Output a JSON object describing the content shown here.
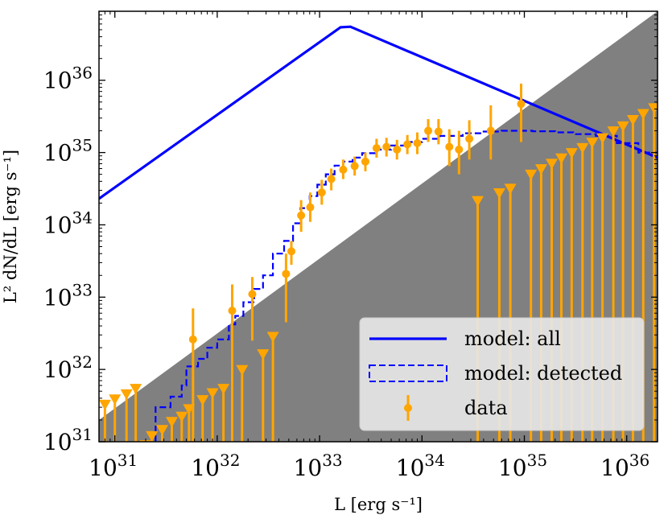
{
  "chart_data": {
    "type": "line",
    "title": "",
    "xlabel": "L [erg s⁻¹]",
    "ylabel": "L² dN/dL [erg s⁻¹]",
    "xscale": "log",
    "yscale": "log",
    "xlim": [
      7e+30,
      2e+36
    ],
    "ylim": [
      1e+31,
      9e+36
    ],
    "x_ticks": [
      {
        "value": 1e+31,
        "base": "10",
        "exp": "31"
      },
      {
        "value": 1e+32,
        "base": "10",
        "exp": "32"
      },
      {
        "value": 1e+33,
        "base": "10",
        "exp": "33"
      },
      {
        "value": 1e+34,
        "base": "10",
        "exp": "34"
      },
      {
        "value": 1e+35,
        "base": "10",
        "exp": "35"
      },
      {
        "value": 1e+36,
        "base": "10",
        "exp": "36"
      }
    ],
    "y_ticks": [
      {
        "value": 1e+31,
        "base": "10",
        "exp": "31"
      },
      {
        "value": 1e+32,
        "base": "10",
        "exp": "32"
      },
      {
        "value": 1e+33,
        "base": "10",
        "exp": "33"
      },
      {
        "value": 1e+34,
        "base": "10",
        "exp": "34"
      },
      {
        "value": 1e+35,
        "base": "10",
        "exp": "35"
      },
      {
        "value": 1e+36,
        "base": "10",
        "exp": "36"
      }
    ],
    "grid": false,
    "legend_position": "lower-right",
    "shaded_region": {
      "description": "sensitivity limit",
      "line": [
        [
          7e+30,
          2e+31
        ],
        [
          2e+36,
          9e+36
        ]
      ],
      "color": "#808080"
    },
    "series": [
      {
        "name": "model: all",
        "style": "solid",
        "color": "#0000ff",
        "points": [
          [
            7e+30,
            2.3e+34
          ],
          [
            1.6e+33,
            5.4e+36
          ],
          [
            2e+33,
            5.5e+36
          ],
          [
            2e+36,
            8.5e+34
          ]
        ]
      },
      {
        "name": "model: detected",
        "style": "dashed-step",
        "color": "#0000ff",
        "points": [
          [
            2.5e+31,
            1e+31
          ],
          [
            2.5e+31,
            3e+31
          ],
          [
            3.5e+31,
            3e+31
          ],
          [
            3.5e+31,
            4.2e+31
          ],
          [
            4.5e+31,
            4.2e+31
          ],
          [
            4.5e+31,
            6e+31
          ],
          [
            5e+31,
            6e+31
          ],
          [
            5e+31,
            1.1e+32
          ],
          [
            6.5e+31,
            1.1e+32
          ],
          [
            6.5e+31,
            1.4e+32
          ],
          [
            8e+31,
            1.4e+32
          ],
          [
            8e+31,
            2e+32
          ],
          [
            1e+32,
            2e+32
          ],
          [
            1e+32,
            2.6e+32
          ],
          [
            1.3e+32,
            2.6e+32
          ],
          [
            1.3e+32,
            4.2e+32
          ],
          [
            1.5e+32,
            4.2e+32
          ],
          [
            1.5e+32,
            5.5e+32
          ],
          [
            1.8e+32,
            5.5e+32
          ],
          [
            1.8e+32,
            8.5e+32
          ],
          [
            2.3e+32,
            8.5e+32
          ],
          [
            2.3e+32,
            1.3e+33
          ],
          [
            2.8e+32,
            1.3e+33
          ],
          [
            2.8e+32,
            2e+33
          ],
          [
            3.5e+32,
            2e+33
          ],
          [
            3.5e+32,
            4e+33
          ],
          [
            4.5e+32,
            4e+33
          ],
          [
            4.5e+32,
            6e+33
          ],
          [
            5.5e+32,
            6e+33
          ],
          [
            5.5e+32,
            1.05e+34
          ],
          [
            6.5e+32,
            1.05e+34
          ],
          [
            6.5e+32,
            1.7e+34
          ],
          [
            8e+32,
            1.7e+34
          ],
          [
            8e+32,
            2.5e+34
          ],
          [
            9.5e+32,
            2.5e+34
          ],
          [
            9.5e+32,
            3.6e+34
          ],
          [
            1.15e+33,
            3.6e+34
          ],
          [
            1.15e+33,
            5e+34
          ],
          [
            1.4e+33,
            5e+34
          ],
          [
            1.4e+33,
            6.6e+34
          ],
          [
            1.7e+33,
            6.6e+34
          ],
          [
            1.7e+33,
            7.5e+34
          ],
          [
            2.1e+33,
            7.5e+34
          ],
          [
            2.1e+33,
            8.5e+34
          ],
          [
            2.6e+33,
            8.5e+34
          ],
          [
            2.6e+33,
            9.8e+34
          ],
          [
            3.5e+33,
            9.8e+34
          ],
          [
            3.5e+33,
            1.1e+35
          ],
          [
            5e+33,
            1.1e+35
          ],
          [
            5e+33,
            1.25e+35
          ],
          [
            7e+33,
            1.25e+35
          ],
          [
            7e+33,
            1.4e+35
          ],
          [
            1e+34,
            1.4e+35
          ],
          [
            1e+34,
            1.55e+35
          ],
          [
            1.5e+34,
            1.55e+35
          ],
          [
            1.5e+34,
            1.7e+35
          ],
          [
            2.5e+34,
            1.7e+35
          ],
          [
            2.5e+34,
            1.85e+35
          ],
          [
            4e+34,
            1.85e+35
          ],
          [
            4e+34,
            1.95e+35
          ],
          [
            6e+34,
            1.95e+35
          ],
          [
            6e+34,
            2e+35
          ],
          [
            1.2e+35,
            2e+35
          ],
          [
            1.2e+35,
            1.97e+35
          ],
          [
            2e+35,
            1.97e+35
          ],
          [
            2e+35,
            1.9e+35
          ],
          [
            3e+35,
            1.9e+35
          ],
          [
            3e+35,
            1.8e+35
          ],
          [
            5e+35,
            1.8e+35
          ],
          [
            5e+35,
            1.7e+35
          ],
          [
            8e+35,
            1.7e+35
          ],
          [
            8e+35,
            1.35e+35
          ],
          [
            1.3e+36,
            1.35e+35
          ],
          [
            1.3e+36,
            1e+35
          ],
          [
            2e+36,
            1e+35
          ]
        ]
      }
    ],
    "data_points": {
      "name": "data",
      "color": "#ffa500",
      "detections": [
        {
          "x": 5.8e+31,
          "y": 2.6e+32,
          "lo": 7e+30,
          "hi": 7e+32
        },
        {
          "x": 1.4e+32,
          "y": 6.5e+32,
          "lo": 7e+30,
          "hi": 1.5e+33
        },
        {
          "x": 2.2e+32,
          "y": 1.1e+33,
          "lo": 2.5e+32,
          "hi": 1.9e+33
        },
        {
          "x": 4.7e+32,
          "y": 2.1e+33,
          "lo": 4.5e+32,
          "hi": 4e+33
        },
        {
          "x": 5.3e+32,
          "y": 4.3e+33,
          "lo": 2.8e+33,
          "hi": 6e+33
        },
        {
          "x": 6.6e+32,
          "y": 1.35e+34,
          "lo": 8e+33,
          "hi": 2.2e+34
        },
        {
          "x": 8.1e+32,
          "y": 1.75e+34,
          "lo": 1.1e+34,
          "hi": 2.8e+34
        },
        {
          "x": 1.05e+33,
          "y": 2.8e+34,
          "lo": 1.9e+34,
          "hi": 4.2e+34
        },
        {
          "x": 1.3e+33,
          "y": 4.3e+34,
          "lo": 3e+34,
          "hi": 6e+34
        },
        {
          "x": 1.7e+33,
          "y": 5.8e+34,
          "lo": 4.3e+34,
          "hi": 8e+34
        },
        {
          "x": 2.2e+33,
          "y": 6.5e+34,
          "lo": 4.8e+34,
          "hi": 8.8e+34
        },
        {
          "x": 2.8e+33,
          "y": 7.5e+34,
          "lo": 5.5e+34,
          "hi": 1e+35
        },
        {
          "x": 3.6e+33,
          "y": 1.15e+35,
          "lo": 8.5e+34,
          "hi": 1.55e+35
        },
        {
          "x": 4.5e+33,
          "y": 1.2e+35,
          "lo": 8.8e+34,
          "hi": 1.6e+35
        },
        {
          "x": 5.7e+33,
          "y": 1.1e+35,
          "lo": 8e+34,
          "hi": 1.5e+35
        },
        {
          "x": 7.2e+33,
          "y": 1.3e+35,
          "lo": 9.5e+34,
          "hi": 1.75e+35
        },
        {
          "x": 9e+33,
          "y": 1.35e+35,
          "lo": 9.5e+34,
          "hi": 1.9e+35
        },
        {
          "x": 1.15e+34,
          "y": 2e+35,
          "lo": 1.4e+35,
          "hi": 2.9e+35
        },
        {
          "x": 1.45e+34,
          "y": 1.95e+35,
          "lo": 1.3e+35,
          "hi": 2.9e+35
        },
        {
          "x": 1.85e+34,
          "y": 1.2e+35,
          "lo": 6.5e+34,
          "hi": 2.1e+35
        },
        {
          "x": 2.3e+34,
          "y": 1.1e+35,
          "lo": 5e+34,
          "hi": 2e+35
        },
        {
          "x": 2.9e+34,
          "y": 1.55e+35,
          "lo": 8e+34,
          "hi": 2.8e+35
        },
        {
          "x": 4.7e+34,
          "y": 2e+35,
          "lo": 8e+34,
          "hi": 4.5e+35
        },
        {
          "x": 9.3e+34,
          "y": 4.7e+35,
          "lo": 1.4e+35,
          "hi": 9e+35
        }
      ],
      "upper_limits": [
        {
          "x": 8e+30,
          "y": 3.8e+31
        },
        {
          "x": 1e+31,
          "y": 4.5e+31
        },
        {
          "x": 1.3e+31,
          "y": 5.3e+31
        },
        {
          "x": 1.6e+31,
          "y": 6.3e+31
        },
        {
          "x": 2e+31,
          "y": 1.05e+31
        },
        {
          "x": 2.3e+31,
          "y": 1.4e+31
        },
        {
          "x": 2.9e+31,
          "y": 1.7e+31
        },
        {
          "x": 3.6e+31,
          "y": 2.2e+31
        },
        {
          "x": 4.5e+31,
          "y": 2.6e+31
        },
        {
          "x": 5.3e+31,
          "y": 3.3e+31
        },
        {
          "x": 7.2e+31,
          "y": 4.4e+31
        },
        {
          "x": 9e+31,
          "y": 5.5e+31
        },
        {
          "x": 1.15e+32,
          "y": 6.3e+31
        },
        {
          "x": 1.75e+32,
          "y": 1.15e+32
        },
        {
          "x": 2.8e+32,
          "y": 1.9e+32
        },
        {
          "x": 3.5e+32,
          "y": 3.3e+32
        },
        {
          "x": 3.5e+34,
          "y": 2.5e+34
        },
        {
          "x": 5.7e+34,
          "y": 3.2e+34
        },
        {
          "x": 7.3e+34,
          "y": 3.7e+34
        },
        {
          "x": 1.16e+35,
          "y": 5.8e+34
        },
        {
          "x": 1.46e+35,
          "y": 6.9e+34
        },
        {
          "x": 1.85e+35,
          "y": 8.2e+34
        },
        {
          "x": 2.3e+35,
          "y": 9.7e+34
        },
        {
          "x": 2.9e+35,
          "y": 1.15e+35
        },
        {
          "x": 3.7e+35,
          "y": 1.35e+35
        },
        {
          "x": 4.6e+35,
          "y": 1.6e+35
        },
        {
          "x": 5.8e+35,
          "y": 1.85e+35
        },
        {
          "x": 7.4e+35,
          "y": 2.3e+35
        },
        {
          "x": 9.2e+35,
          "y": 2.7e+35
        },
        {
          "x": 1.15e+36,
          "y": 3.3e+35
        },
        {
          "x": 1.45e+36,
          "y": 4e+35
        },
        {
          "x": 1.85e+36,
          "y": 4.8e+35
        }
      ]
    },
    "legend": [
      {
        "label": "model: all",
        "kind": "solid"
      },
      {
        "label": "model: detected",
        "kind": "dashed-box"
      },
      {
        "label": "data",
        "kind": "errorbar"
      }
    ]
  }
}
